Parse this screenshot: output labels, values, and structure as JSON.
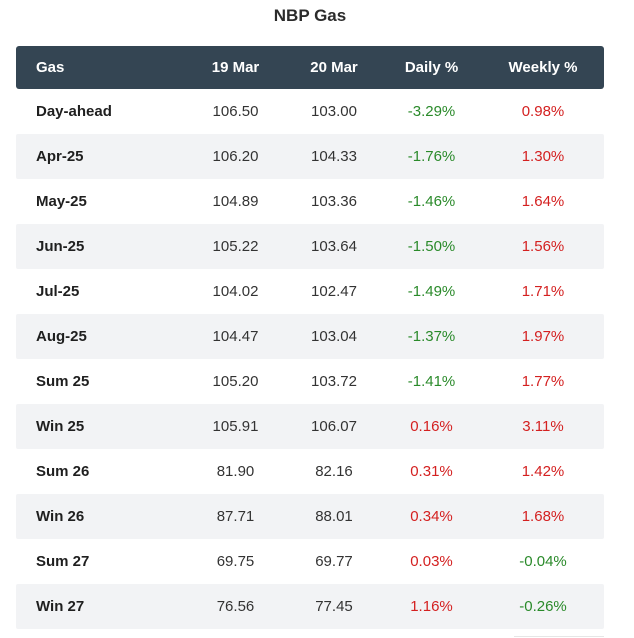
{
  "title": "NBP Gas",
  "columns": [
    "Gas",
    "19 Mar",
    "20 Mar",
    "Daily %",
    "Weekly %"
  ],
  "colors": {
    "header_bg": "#344553",
    "positive_change": "#d42020",
    "negative_change": "#2a8a2a",
    "alt_row_bg": "#f2f3f5"
  },
  "rows": [
    {
      "name": "Day-ahead",
      "mar19": "106.50",
      "mar20": "103.00",
      "daily": "-3.29%",
      "weekly": "0.98%"
    },
    {
      "name": "Apr-25",
      "mar19": "106.20",
      "mar20": "104.33",
      "daily": "-1.76%",
      "weekly": "1.30%"
    },
    {
      "name": "May-25",
      "mar19": "104.89",
      "mar20": "103.36",
      "daily": "-1.46%",
      "weekly": "1.64%"
    },
    {
      "name": "Jun-25",
      "mar19": "105.22",
      "mar20": "103.64",
      "daily": "-1.50%",
      "weekly": "1.56%"
    },
    {
      "name": "Jul-25",
      "mar19": "104.02",
      "mar20": "102.47",
      "daily": "-1.49%",
      "weekly": "1.71%"
    },
    {
      "name": "Aug-25",
      "mar19": "104.47",
      "mar20": "103.04",
      "daily": "-1.37%",
      "weekly": "1.97%"
    },
    {
      "name": "Sum 25",
      "mar19": "105.20",
      "mar20": "103.72",
      "daily": "-1.41%",
      "weekly": "1.77%"
    },
    {
      "name": "Win 25",
      "mar19": "105.91",
      "mar20": "106.07",
      "daily": "0.16%",
      "weekly": "3.11%"
    },
    {
      "name": "Sum 26",
      "mar19": "81.90",
      "mar20": "82.16",
      "daily": "0.31%",
      "weekly": "1.42%"
    },
    {
      "name": "Win 26",
      "mar19": "87.71",
      "mar20": "88.01",
      "daily": "0.34%",
      "weekly": "1.68%"
    },
    {
      "name": "Sum 27",
      "mar19": "69.75",
      "mar20": "69.77",
      "daily": "0.03%",
      "weekly": "-0.04%"
    },
    {
      "name": "Win 27",
      "mar19": "76.56",
      "mar20": "77.45",
      "daily": "1.16%",
      "weekly": "-0.26%"
    }
  ]
}
